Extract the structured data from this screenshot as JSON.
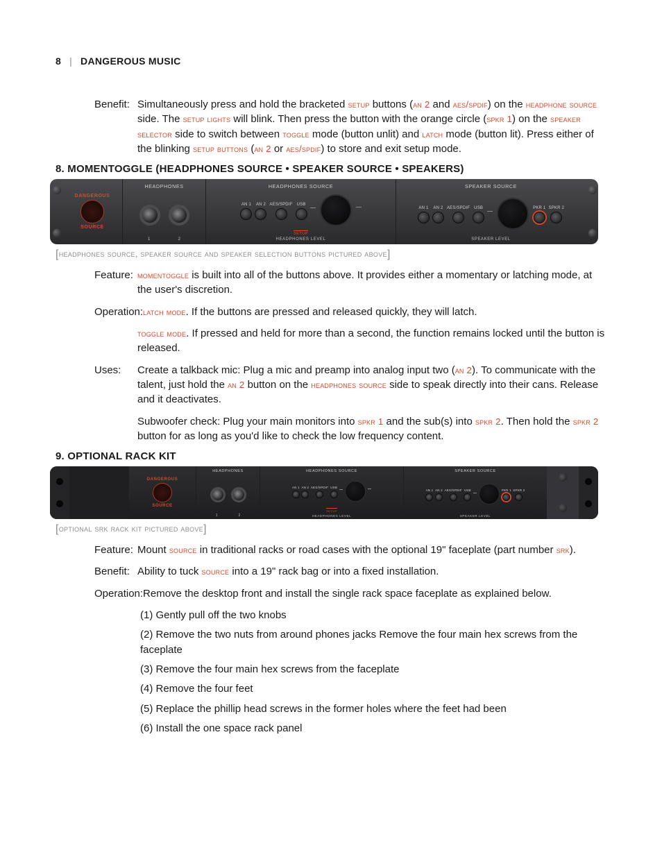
{
  "header": {
    "page_num": "8",
    "separator": "|",
    "brand": "DANGEROUS MUSIC"
  },
  "benefit_top": {
    "label": "Benefit:",
    "p1_a": "Simultaneously press and hold the bracketed ",
    "kw_setup": "setup",
    "p1_b": " buttons (",
    "kw_an2": "an 2",
    "p1_c": " and ",
    "kw_aes": "aes/spdif",
    "p1_d": ") on the ",
    "kw_hpsrc": "headphone source",
    "p1_e": " side. The ",
    "kw_setuplights": "setup lights",
    "p2_a": " will blink. Then press the button with the orange circle (",
    "kw_spkr1": "spkr 1",
    "p2_b": ") on the ",
    "kw_spksel": "speaker selector",
    "p2_c": " side to switch between ",
    "kw_toggle": "toggle",
    "p3_a": " mode (button unlit) and ",
    "kw_latch": "latch",
    "p3_b": " mode (button lit). Press either of the blinking ",
    "kw_setupbtns": "setup buttons",
    "p3_c": " (",
    "kw_an2b": "an 2",
    "p3_d": " or ",
    "kw_aesb": "aes/spdif",
    "p3_e": ") to store and exit setup mode."
  },
  "section8": {
    "heading": "8. MOMENTOGGLE (HEADPHONES SOURCE • SPEAKER SOURCE • SPEAKERS)",
    "caption": "headphones source, speaker source and speaker selection buttons pictured above",
    "feature": {
      "label": "Feature:",
      "t1": "",
      "kw": "momentoggle",
      "t2": " is built into all of the buttons above. It provides either a momentary or latching mode, at the user's discretion."
    },
    "operation": {
      "label": "Operation:",
      "kw1": "latch mode",
      "t1": ". If the buttons are pressed and released quickly, they will latch.",
      "kw2": "toggle mode",
      "t2": ". If pressed and held for more than a second, the function remains locked until the button is released."
    },
    "uses": {
      "label": "Uses:",
      "t1": "Create a talkback mic: Plug a mic and preamp into analog input two (",
      "kw_an2a": "an 2",
      "t2": "). To communicate with the talent, just hold the ",
      "kw_an2b": "an 2",
      "t3": " button on the ",
      "kw_hpsrc": "headphones source",
      "t4": " side to speak directly into their cans. Release and it deactivates.",
      "t5": "Subwoofer check: Plug your main monitors into ",
      "kw_spkr1": "spkr 1",
      "t6": " and the sub(s) into ",
      "kw_spkr2a": "spkr 2",
      "t7": ". Then hold the ",
      "kw_spkr2b": "spkr 2",
      "t8": " button for as long as you'd like to check the low frequency content."
    }
  },
  "section9": {
    "heading": "9. OPTIONAL RACK KIT",
    "caption": "optional srk rack kit pictured above",
    "feature": {
      "label": "Feature:",
      "t1": "Mount ",
      "kw_src": "source",
      "t2": " in traditional racks or road cases with the optional 19\" faceplate (part number ",
      "kw_srk": "srk",
      "t3": ")."
    },
    "benefit": {
      "label": "Benefit:",
      "t1": "Ability to tuck ",
      "kw_src": "source",
      "t2": " into a 19\" rack bag or into a fixed installation."
    },
    "operation": {
      "label": "Operation:",
      "t1": "Remove the desktop front and install the single rack space faceplate as explained below."
    },
    "steps": [
      "(1) Gently pull off the two knobs",
      "(2) Remove the two nuts from around phones jacks Remove the four main hex screws from the faceplate",
      "(3) Remove the four main hex screws from the faceplate",
      "(4) Remove the four feet",
      "(5) Replace the phillip head screws in the former holes where the feet had been",
      "(6) Install the one space rack panel"
    ]
  },
  "panel": {
    "brand_top": "DANGEROUS",
    "brand_bottom": "SOURCE",
    "headphones_label": "HEADPHONES",
    "hp_src_label": "HEADPHONES SOURCE",
    "spk_src_label": "SPEAKER SOURCE",
    "hp_level": "HEADPHONES LEVEL",
    "spk_level": "SPEAKER LEVEL",
    "setup_label": "SETUP",
    "jack1": "1",
    "jack2": "2",
    "buttons": {
      "an1": "AN 1",
      "an2": "AN 2",
      "aes": "AES/SPDIF",
      "usb": "USB",
      "spkr1": "PKR 1",
      "spkr2": "SPKR 2"
    }
  },
  "colors": {
    "accent": "#d6492a",
    "body": "#1a1a1a",
    "panel_dark": "#2a2a2c",
    "panel_light": "#4a4a4e"
  }
}
